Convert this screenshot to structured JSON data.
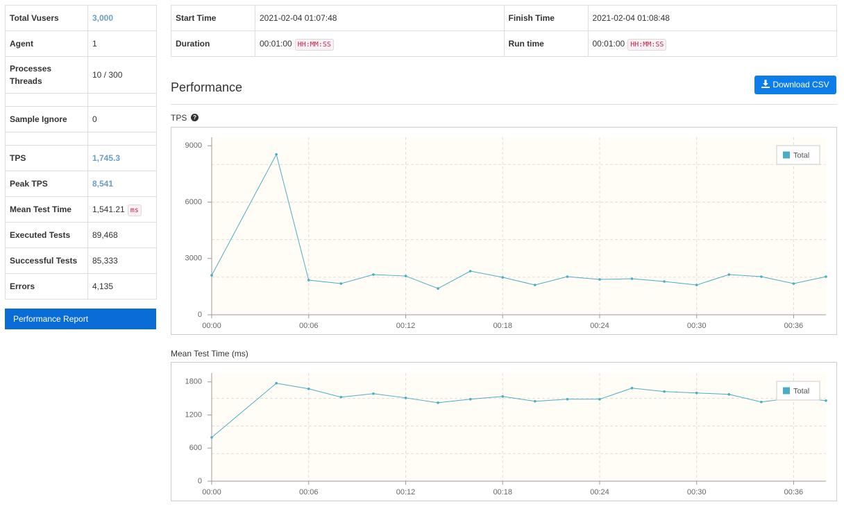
{
  "summary": {
    "total_vusers": {
      "label": "Total Vusers",
      "value": "3,000"
    },
    "agent": {
      "label": "Agent",
      "value": "1"
    },
    "processes_threads": {
      "label": "Processes Threads",
      "value": "10 / 300"
    },
    "sample_ignore": {
      "label": "Sample Ignore",
      "value": "0"
    },
    "tps": {
      "label": "TPS",
      "value": "1,745.3"
    },
    "peak_tps": {
      "label": "Peak TPS",
      "value": "8,541"
    },
    "mean_test_time": {
      "label": "Mean Test Time",
      "value": "1,541.21",
      "unit": "ms"
    },
    "executed_tests": {
      "label": "Executed Tests",
      "value": "89,468"
    },
    "successful_tests": {
      "label": "Successful Tests",
      "value": "85,333"
    },
    "errors": {
      "label": "Errors",
      "value": "4,135"
    },
    "report_button": "Performance Report"
  },
  "timing": {
    "start_time": {
      "label": "Start Time",
      "value": "2021-02-04 01:07:48"
    },
    "finish_time": {
      "label": "Finish Time",
      "value": "2021-02-04 01:08:48"
    },
    "duration": {
      "label": "Duration",
      "value": "00:01:00",
      "format": "HH:MM:SS"
    },
    "run_time": {
      "label": "Run time",
      "value": "00:01:00",
      "format": "HH:MM:SS"
    }
  },
  "performance": {
    "title": "Performance",
    "download_button": "Download CSV"
  },
  "chart_data": [
    {
      "type": "line",
      "title": "TPS",
      "x": [
        0,
        4,
        6,
        8,
        10,
        12,
        14,
        16,
        18,
        20,
        22,
        24,
        26,
        28,
        30,
        32,
        34,
        36,
        38
      ],
      "series": [
        {
          "name": "Total",
          "color": "#4bacc6",
          "values": [
            2100,
            8541,
            1844,
            1660,
            2140,
            2065,
            1400,
            2324,
            1992,
            1586,
            2029,
            1881,
            1918,
            1770,
            1586,
            2140,
            2029,
            1660,
            2029
          ]
        }
      ],
      "xlim": [
        0,
        38
      ],
      "xticks": [
        {
          "value": 0,
          "label": "00:00"
        },
        {
          "value": 6,
          "label": "00:06"
        },
        {
          "value": 12,
          "label": "00:12"
        },
        {
          "value": 18,
          "label": "00:18"
        },
        {
          "value": 24,
          "label": "00:24"
        },
        {
          "value": 30,
          "label": "00:30"
        },
        {
          "value": 36,
          "label": "00:36"
        }
      ],
      "ylim": [
        0,
        9450
      ],
      "yticks": [
        0,
        3000,
        6000,
        9000
      ],
      "ygrid": [
        2000,
        4000,
        6000,
        8000
      ],
      "grid": true,
      "legend": "upper right"
    },
    {
      "type": "line",
      "title": "Mean Test Time (ms)",
      "x": [
        0,
        4,
        6,
        8,
        10,
        12,
        14,
        16,
        18,
        20,
        22,
        24,
        26,
        28,
        30,
        32,
        34,
        36,
        38
      ],
      "series": [
        {
          "name": "Total",
          "color": "#4bacc6",
          "values": [
            793,
            1775,
            1674,
            1523,
            1586,
            1510,
            1422,
            1485,
            1536,
            1448,
            1485,
            1485,
            1687,
            1624,
            1599,
            1573,
            1435,
            1510,
            1460
          ]
        }
      ],
      "xlim": [
        0,
        38
      ],
      "xticks": [
        {
          "value": 0,
          "label": "00:00"
        },
        {
          "value": 6,
          "label": "00:06"
        },
        {
          "value": 12,
          "label": "00:12"
        },
        {
          "value": 18,
          "label": "00:18"
        },
        {
          "value": 24,
          "label": "00:24"
        },
        {
          "value": 30,
          "label": "00:30"
        },
        {
          "value": 36,
          "label": "00:36"
        }
      ],
      "ylim": [
        0,
        1960
      ],
      "yticks": [
        0,
        600,
        1200,
        1800
      ],
      "ygrid": [
        500,
        1000,
        1500
      ],
      "grid": true,
      "legend": "upper right"
    }
  ]
}
